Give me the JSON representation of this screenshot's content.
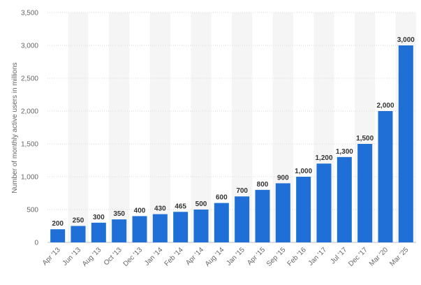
{
  "chart_data": {
    "type": "bar",
    "categories": [
      "Apr '13",
      "Jun '13",
      "Aug '13",
      "Oct '13",
      "Dec '13",
      "Jan '14",
      "Feb '14",
      "Apr '14",
      "Aug '14",
      "Jan '15",
      "Apr '15",
      "Sep '15",
      "Feb '16",
      "Jan '17",
      "Jul '17",
      "Dec '17",
      "Mar '20",
      "Mar '25"
    ],
    "values": [
      200,
      250,
      300,
      350,
      400,
      430,
      465,
      500,
      600,
      700,
      800,
      900,
      1000,
      1200,
      1300,
      1500,
      2000,
      3000
    ],
    "data_labels": [
      "200",
      "250",
      "300",
      "350",
      "400",
      "430",
      "465",
      "500",
      "600",
      "700",
      "800",
      "900",
      "1,000",
      "1,200",
      "1,300",
      "1,500",
      "2,000",
      "3,000"
    ],
    "ylabel": "Number of monthly active users in millions",
    "ylim": [
      0,
      3500
    ],
    "yticks": [
      0,
      500,
      1000,
      1500,
      2000,
      2500,
      3000,
      3500
    ],
    "ytick_labels": [
      "0",
      "500",
      "1,000",
      "1,500",
      "2,000",
      "2,500",
      "3,000",
      "3,500"
    ],
    "grid": true,
    "legend": "none",
    "colors": {
      "bar": "#1f6fd6",
      "band": "#f5f5f5",
      "grid": "#d9d9d9",
      "text": "#666666",
      "label": "#333333"
    }
  }
}
